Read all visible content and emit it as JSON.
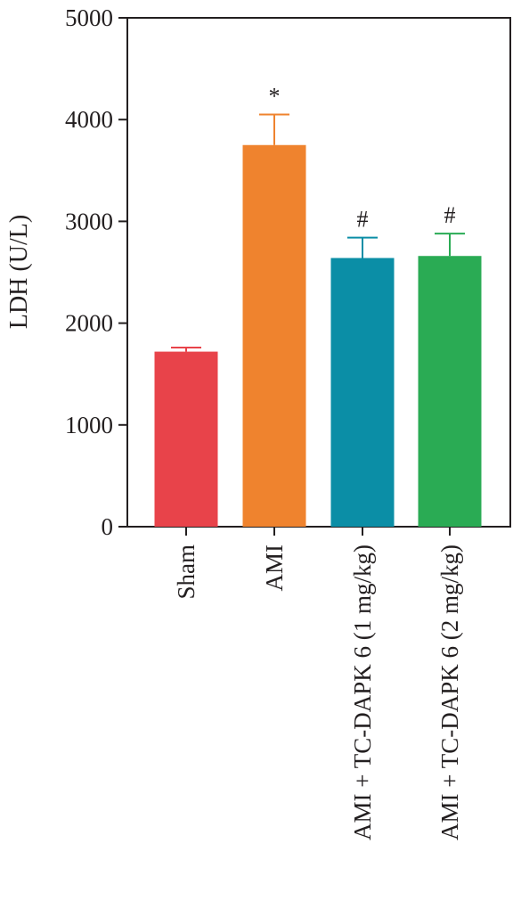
{
  "chart_data": {
    "type": "bar",
    "title": "",
    "xlabel": "",
    "ylabel": "LDH (U/L)",
    "ylim": [
      0,
      5000
    ],
    "yticks": [
      "0",
      "1000",
      "2000",
      "3000",
      "4000",
      "5000"
    ],
    "grid": false,
    "categories": [
      "Sham",
      "AMI",
      "AMI + TC-DAPK 6 (1 mg/kg)",
      "AMI + TC-DAPK 6 (2 mg/kg)"
    ],
    "values": [
      1720,
      3750,
      2640,
      2660
    ],
    "error": [
      40,
      300,
      200,
      220
    ],
    "significance": [
      "",
      "*",
      "#",
      "#"
    ],
    "colors": [
      "#e8434a",
      "#ef832e",
      "#0b8ea6",
      "#2aab54"
    ]
  }
}
